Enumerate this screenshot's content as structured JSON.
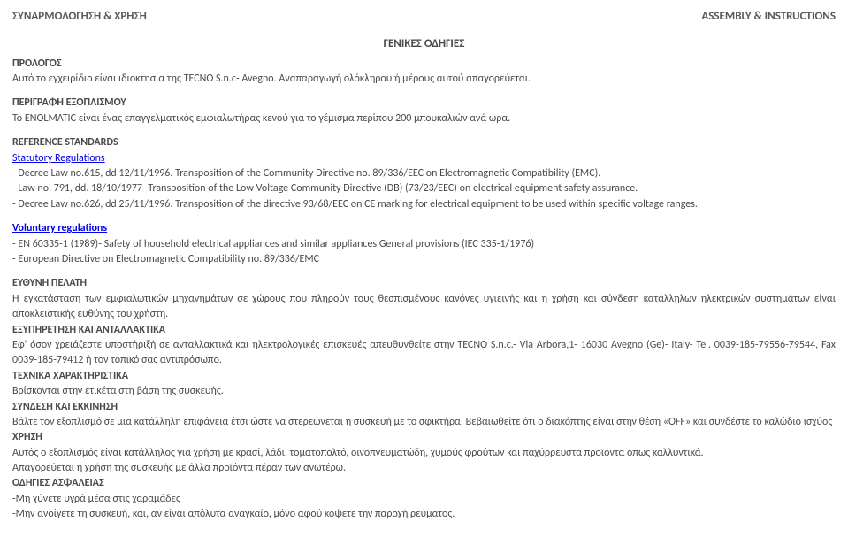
{
  "header": {
    "left": "ΣΥΝΑΡΜΟΛΟΓΗΣΗ & ΧΡΗΣΗ",
    "right": "ASSEMBLY & INSTRUCTIONS"
  },
  "c_title": "ΓΕΝΙΚΕΣ ΟΔΗΓΙΕΣ",
  "prologue": {
    "h": "ΠΡΟΛΟΓΟΣ",
    "t": "Αυτό το εγχειρίδιο είναι ιδιοκτησία της TECNO S.n.c- Avegno. Αναπαραγωγή ολόκληρου ή μέρους αυτού απαγορεύεται."
  },
  "equip": {
    "h": "ΠΕΡΙΓΡΑΦΗ ΕΞΟΠΛΙΣΜΟΥ",
    "t": "Το ENOLMATIC είναι ένας επαγγελματικός εμφιαλωτήρας κενού για το γέμισμα περίπου 200 μπουκαλιών ανά ώρα."
  },
  "ref": {
    "h": "REFERENCE STANDARDS",
    "sub": "Statutory Regulations",
    "i1": "-   Decree Law no.615, dd 12/11/1996. Transposition of the Community Directive no. 89/336/EEC on Electromagnetic Compatibility (EMC).",
    "i2": "-   Law no. 791, dd. 18/10/1977- Transposition of the Low Voltage Community Directive (DB) (73/23/EEC) on electrical equipment safety assurance.",
    "i3": "-   Decree Law no.626, dd 25/11/1996. Transposition of the directive 93/68/EEC on CE marking for electrical equipment to be used within specific voltage ranges."
  },
  "vol": {
    "h": "Voluntary regulations",
    "i1": "-   EN 60335-1 (1989)- Safety of household electrical appliances and similar appliances  General provisions (IEC 335-1/1976)",
    "i2": "-   European Directive on Electromagnetic Compatibility no. 89/336/EMC"
  },
  "client": {
    "h": "ΕΥΘΥΝΗ ΠΕΛΑΤΗ",
    "t": "Η εγκατάσταση των εμφιαλωτικών μηχανημάτων σε χώρους που πληρούν τους θεσπισμένους κανόνες υγιεινής και η χρήση και σύνδεση κατάλληλων ηλεκτρικών συστημάτων είναι αποκλειστικής ευθύνης του χρήστη."
  },
  "svc": {
    "h": "ΕΞΥΠΗΡΕΤΗΣΗ ΚΑΙ ΑΝΤΑΛΛΑΚΤΙΚΑ",
    "t1": "Εφ' όσον χρειάζεστε υποστήριξή σε ανταλλακτικά και ηλεκτρολογικές επισκευές απευθυνθείτε στην TECNO S.n.c.- Via Arbora,1- 16030 Avegno (Ge)- Italy- Tel. 0039-185-79556-79544, Fax 0039-185-79412 ή τον τοπικό σας αντιπρόσωπο."
  },
  "tech": {
    "h": "ΤΕΧΝΙΚΑ ΧΑΡΑΚΤΗΡΙΣΤΙΚΑ",
    "t": "Βρίσκονται στην ετικέτα στη βάση της συσκευής."
  },
  "conn": {
    "h": "ΣΥΝΔΕΣΗ ΚΑΙ ΕΚΚΙΝΗΣΗ",
    "t": "Βάλτε τον εξοπλισμό σε μια κατάλληλη επιφάνεια έτσι ώστε να στερεώνεται η συσκευή με το σφικτήρα. Βεβαιωθείτε ότι ο διακόπτης είναι στην θέση «OFF» και συνδέστε το καλώδιο ισχύος"
  },
  "use": {
    "h": "ΧΡΗΣΗ",
    "t1": "Αυτός ο εξοπλισμός είναι κατάλληλος για χρήση με κρασί, λάδι, τοματοπολτό, οινοπνευματώδη, χυμούς φρούτων και παχύρρευστα προϊόντα όπως καλλυντικά.",
    "t2": "Απαγορεύεται η χρήση της συσκευής με άλλα προϊόντα πέραν των ανωτέρω."
  },
  "safe": {
    "h": "ΟΔΗΓΙΕΣ ΑΣΦΑΛΕΙΑΣ",
    "i1": "-Μη χύνετε υγρά μέσα στις χαραμάδες",
    "i2": "-Μην ανοίγετε τη συσκευή, και, αν είναι απόλυτα αναγκαίο, μόνο αφού κόψετε την παροχή ρεύματος."
  }
}
